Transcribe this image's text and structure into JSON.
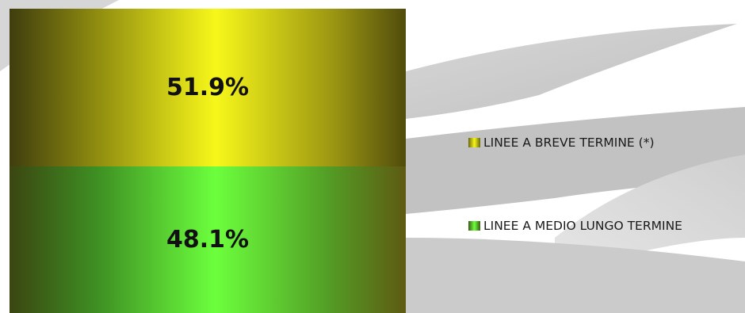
{
  "chart_data": {
    "type": "bar",
    "stacked": true,
    "percent": true,
    "categories": [
      ""
    ],
    "series": [
      {
        "name": "LINEE A MEDIO LUNGO TERMINE",
        "values": [
          48.1
        ],
        "label": "48.1%",
        "color": "#6cff3d"
      },
      {
        "name": "LINEE A BREVE TERMINE (*)",
        "values": [
          51.9
        ],
        "label": "51.9%",
        "color": "#f7f71a"
      }
    ],
    "ylim": [
      0,
      100
    ],
    "legend": "right",
    "grid": false
  }
}
